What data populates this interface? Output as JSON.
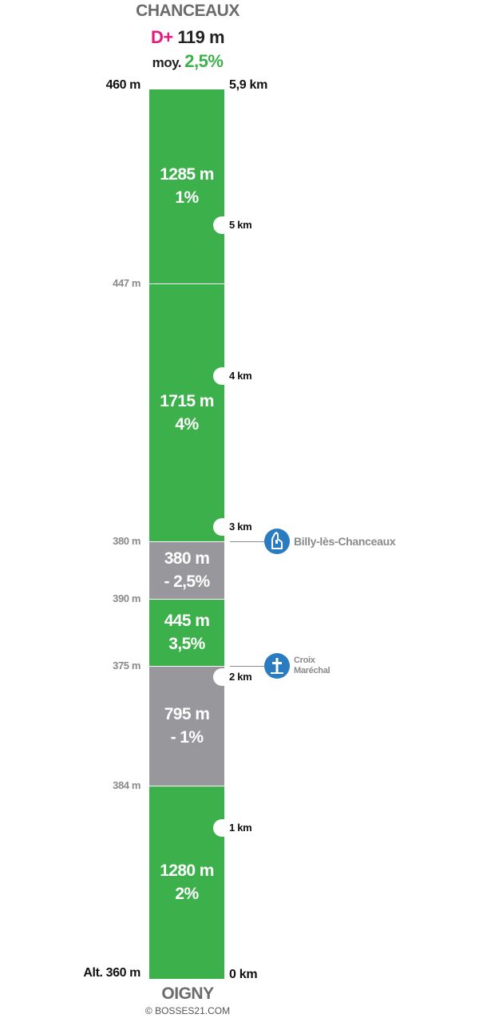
{
  "header": {
    "summit_name": "CHANCEAUX",
    "climb_prefix": "D+",
    "climb_value": "119 m",
    "avg_prefix": "moy.",
    "avg_value": "2,5%"
  },
  "footer": {
    "start_name": "OIGNY",
    "copyright": "© BOSSES21.COM"
  },
  "colors": {
    "climb_segment": "#3cb04a",
    "descent_segment": "#98989c",
    "accent_pink": "#e5197d",
    "poi_blue": "#2a7bc0"
  },
  "chart_data": {
    "type": "bar",
    "total_distance_km": 5.9,
    "segments": [
      {
        "length": "1280 m",
        "grade": "2%",
        "kind": "climb"
      },
      {
        "length": "795 m",
        "grade": "- 1%",
        "kind": "descent"
      },
      {
        "length": "445 m",
        "grade": "3,5%",
        "kind": "climb"
      },
      {
        "length": "380 m",
        "grade": "- 2,5%",
        "kind": "descent"
      },
      {
        "length": "1715 m",
        "grade": "4%",
        "kind": "climb"
      },
      {
        "length": "1285 m",
        "grade": "1%",
        "kind": "climb"
      }
    ],
    "altitudes": [
      {
        "label": "Alt. 360 m",
        "km": 0,
        "primary": true
      },
      {
        "label": "384 m",
        "km": 1.28,
        "primary": false
      },
      {
        "label": "375 m",
        "km": 2.075,
        "primary": false
      },
      {
        "label": "390 m",
        "km": 2.52,
        "primary": false
      },
      {
        "label": "380 m",
        "km": 2.9,
        "primary": false
      },
      {
        "label": "447 m",
        "km": 4.615,
        "primary": false
      },
      {
        "label": "460 m",
        "km": 5.9,
        "primary": true
      }
    ],
    "km_markers": [
      {
        "label": "0 km",
        "km": 0,
        "notch": false,
        "primary": true
      },
      {
        "label": "1 km",
        "km": 1,
        "notch": true,
        "primary": false
      },
      {
        "label": "2 km",
        "km": 2,
        "notch": true,
        "primary": false
      },
      {
        "label": "3 km",
        "km": 3,
        "notch": true,
        "primary": false
      },
      {
        "label": "4 km",
        "km": 4,
        "notch": true,
        "primary": false
      },
      {
        "label": "5 km",
        "km": 5,
        "notch": true,
        "primary": false
      },
      {
        "label": "5,9 km",
        "km": 5.9,
        "notch": false,
        "primary": true
      }
    ],
    "points_of_interest": [
      {
        "name_lines": [
          "Billy-lès-Chanceaux"
        ],
        "icon": "church-icon",
        "km": 2.9
      },
      {
        "name_lines": [
          "Croix",
          "Maréchal"
        ],
        "icon": "cross-icon",
        "km": 2.075
      }
    ]
  }
}
